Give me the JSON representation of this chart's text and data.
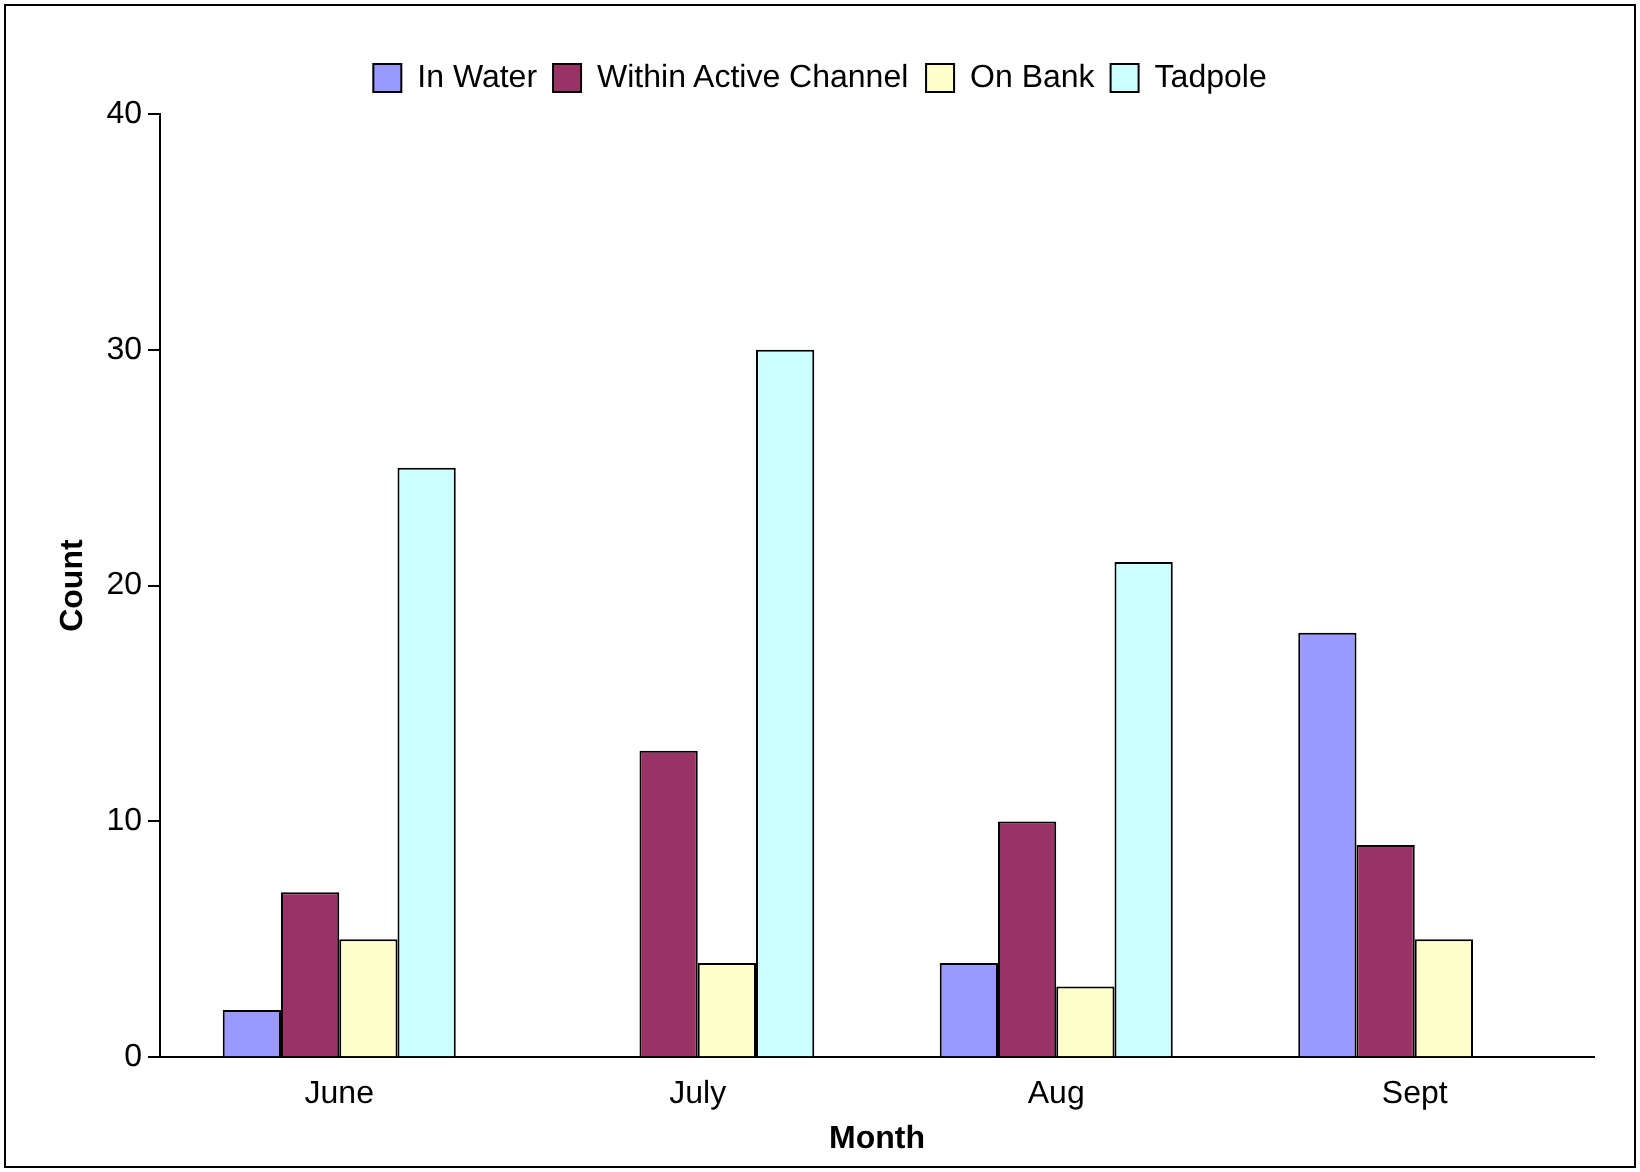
{
  "chart_data": {
    "type": "bar",
    "xlabel": "Month",
    "ylabel": "Count",
    "categories": [
      "June",
      "July",
      "Aug",
      "Sept"
    ],
    "series": [
      {
        "name": "In Water",
        "color": "#9999ff",
        "values": [
          2,
          0,
          4,
          18
        ]
      },
      {
        "name": "Within Active Channel",
        "color": "#993366",
        "values": [
          7,
          13,
          10,
          9
        ]
      },
      {
        "name": "On Bank",
        "color": "#ffffcc",
        "values": [
          5,
          4,
          3,
          5
        ]
      },
      {
        "name": "Tadpole",
        "color": "#ccffff",
        "values": [
          25,
          30,
          21,
          0
        ]
      }
    ],
    "ylim": [
      0,
      40
    ],
    "yticks": [
      0,
      10,
      20,
      30,
      40
    ],
    "grid": false,
    "legend": "top"
  }
}
